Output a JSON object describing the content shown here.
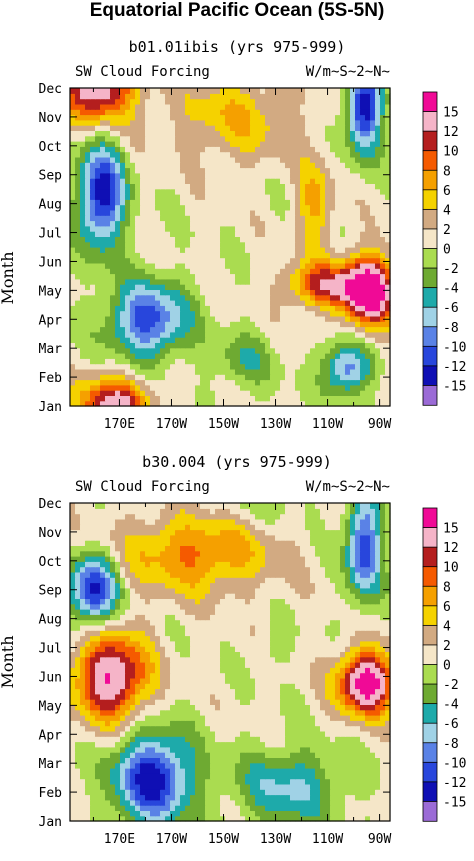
{
  "title": "Equatorial Pacific Ocean (5S-5N)",
  "chart_data": [
    {
      "type": "heatmap",
      "title": "b01.01ibis (yrs 975-999)",
      "left_label": "SW Cloud Forcing",
      "right_label": "W/m~S~2~N~",
      "ylabel": "Month",
      "y_ticks": [
        "Jan",
        "Feb",
        "Mar",
        "Apr",
        "May",
        "Jun",
        "Jul",
        "Aug",
        "Sep",
        "Oct",
        "Nov",
        "Dec"
      ],
      "x_ticks": [
        "170E",
        "170W",
        "150W",
        "130W",
        "110W",
        "90W"
      ],
      "x_tick_lon": [
        170,
        190,
        210,
        230,
        250,
        270
      ],
      "xlim": [
        151,
        274
      ],
      "colorbar_labels": [
        "15",
        "12",
        "10",
        "8",
        "6",
        "4",
        "2",
        "0",
        "-2",
        "-4",
        "-6",
        "-8",
        "-10",
        "-12",
        "-15"
      ],
      "levels": [
        -15,
        -12,
        -10,
        -8,
        -6,
        -4,
        -2,
        0,
        2,
        4,
        6,
        8,
        10,
        12,
        15
      ],
      "colors": [
        "#9b6bd6",
        "#0f0fb4",
        "#2846dc",
        "#5a82e6",
        "#a0d2e6",
        "#1eaaaa",
        "#6eaa32",
        "#aadc50",
        "#f5e6c8",
        "#d2aa82",
        "#f5d200",
        "#f5a000",
        "#f55a00",
        "#b41e1e",
        "#f5b4c8",
        "#f00a96"
      ],
      "features": [
        {
          "month": 11.0,
          "lon": 162,
          "value": 14,
          "r_lon": 14,
          "r_month": 1.2
        },
        {
          "month": 0.0,
          "lon": 168,
          "value": 13,
          "r_lon": 14,
          "r_month": 1.0
        },
        {
          "month": 10.0,
          "lon": 215,
          "value": 5,
          "r_lon": 25,
          "r_month": 1.5
        },
        {
          "month": 7.0,
          "lon": 245,
          "value": 6,
          "r_lon": 7,
          "r_month": 1.5
        },
        {
          "month": 4.0,
          "lon": 266,
          "value": 18,
          "r_lon": 10,
          "r_month": 1.2
        },
        {
          "month": 4.2,
          "lon": 248,
          "value": 10,
          "r_lon": 14,
          "r_month": 0.8
        },
        {
          "month": 7.3,
          "lon": 163,
          "value": -14,
          "r_lon": 9,
          "r_month": 1.8
        },
        {
          "month": 3.0,
          "lon": 181,
          "value": -12,
          "r_lon": 15,
          "r_month": 1.3
        },
        {
          "month": 10.3,
          "lon": 264,
          "value": -14,
          "r_lon": 7,
          "r_month": 1.5
        },
        {
          "month": 1.3,
          "lon": 257,
          "value": -10,
          "r_lon": 9,
          "r_month": 0.9
        },
        {
          "month": 1.6,
          "lon": 218,
          "value": -4,
          "r_lon": 12,
          "r_month": 1.0
        }
      ]
    },
    {
      "type": "heatmap",
      "title": "b30.004 (yrs 975-999)",
      "left_label": "SW Cloud Forcing",
      "right_label": "W/m~S~2~N~",
      "ylabel": "Month",
      "y_ticks": [
        "Jan",
        "Feb",
        "Mar",
        "Apr",
        "May",
        "Jun",
        "Jul",
        "Aug",
        "Sep",
        "Oct",
        "Nov",
        "Dec"
      ],
      "x_ticks": [
        "170E",
        "170W",
        "150W",
        "130W",
        "110W",
        "90W"
      ],
      "x_tick_lon": [
        170,
        190,
        210,
        230,
        250,
        270
      ],
      "xlim": [
        151,
        274
      ],
      "colorbar_labels": [
        "15",
        "12",
        "10",
        "8",
        "6",
        "4",
        "2",
        "0",
        "-2",
        "-4",
        "-6",
        "-8",
        "-10",
        "-12",
        "-15"
      ],
      "levels": [
        -15,
        -12,
        -10,
        -8,
        -6,
        -4,
        -2,
        0,
        2,
        4,
        6,
        8,
        10,
        12,
        15
      ],
      "colors": [
        "#9b6bd6",
        "#0f0fb4",
        "#2846dc",
        "#5a82e6",
        "#a0d2e6",
        "#1eaaaa",
        "#6eaa32",
        "#aadc50",
        "#f5e6c8",
        "#d2aa82",
        "#f5d200",
        "#f5a000",
        "#f55a00",
        "#b41e1e",
        "#f5b4c8",
        "#f00a96"
      ],
      "features": [
        {
          "month": 5.0,
          "lon": 167,
          "value": 15,
          "r_lon": 14,
          "r_month": 1.5
        },
        {
          "month": 9.3,
          "lon": 200,
          "value": 8,
          "r_lon": 28,
          "r_month": 1.4
        },
        {
          "month": 4.8,
          "lon": 265,
          "value": 17,
          "r_lon": 11,
          "r_month": 1.1
        },
        {
          "month": 8.0,
          "lon": 160,
          "value": -14,
          "r_lon": 9,
          "r_month": 1.2
        },
        {
          "month": 1.5,
          "lon": 183,
          "value": -14,
          "r_lon": 15,
          "r_month": 1.6
        },
        {
          "month": 9.5,
          "lon": 264,
          "value": -12,
          "r_lon": 7,
          "r_month": 1.8
        },
        {
          "month": 1.2,
          "lon": 235,
          "value": -7,
          "r_lon": 20,
          "r_month": 1.3
        },
        {
          "month": 6.0,
          "lon": 230,
          "value": -2,
          "r_lon": 6,
          "r_month": 0.6
        },
        {
          "month": 11.0,
          "lon": 220,
          "value": -2,
          "r_lon": 25,
          "r_month": 1.0
        }
      ]
    }
  ]
}
